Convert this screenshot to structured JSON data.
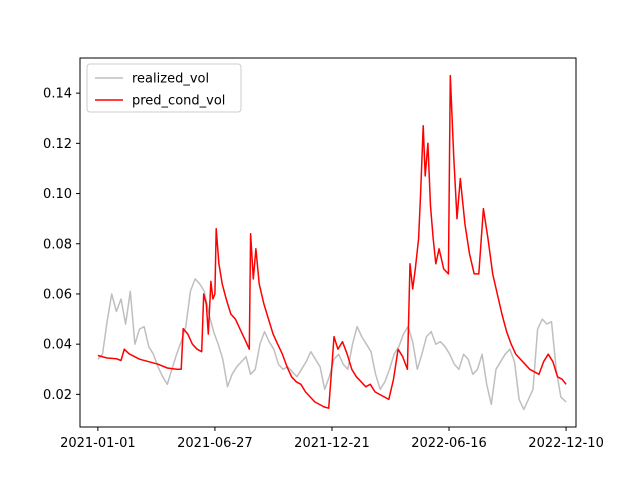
{
  "chart_data": {
    "type": "line",
    "title": "",
    "xlabel": "",
    "ylabel": "",
    "x_ticks": [
      "2021-01-01",
      "2021-06-27",
      "2021-12-21",
      "2022-06-16",
      "2022-12-10"
    ],
    "xlim": [
      "2020-12-05",
      "2022-12-25"
    ],
    "ylim": [
      0.007,
      0.154
    ],
    "y_ticks": [
      0.02,
      0.04,
      0.06,
      0.08,
      0.1,
      0.12,
      0.14
    ],
    "y_tick_labels": [
      "0.02",
      "0.04",
      "0.06",
      "0.08",
      "0.10",
      "0.12",
      "0.14"
    ],
    "grid": false,
    "legend": {
      "position": "top-left"
    },
    "series": [
      {
        "name": "realized_vol",
        "color": "#bfbfbf",
        "points": [
          [
            "2021-01-01",
            0.034
          ],
          [
            "2021-01-08",
            0.036
          ],
          [
            "2021-01-15",
            0.049
          ],
          [
            "2021-01-22",
            0.06
          ],
          [
            "2021-01-29",
            0.053
          ],
          [
            "2021-02-05",
            0.058
          ],
          [
            "2021-02-12",
            0.048
          ],
          [
            "2021-02-19",
            0.061
          ],
          [
            "2021-02-26",
            0.04
          ],
          [
            "2021-03-05",
            0.046
          ],
          [
            "2021-03-12",
            0.047
          ],
          [
            "2021-03-19",
            0.039
          ],
          [
            "2021-03-26",
            0.036
          ],
          [
            "2021-04-02",
            0.031
          ],
          [
            "2021-04-09",
            0.027
          ],
          [
            "2021-04-16",
            0.024
          ],
          [
            "2021-04-23",
            0.03
          ],
          [
            "2021-04-30",
            0.036
          ],
          [
            "2021-05-07",
            0.041
          ],
          [
            "2021-05-14",
            0.047
          ],
          [
            "2021-05-21",
            0.061
          ],
          [
            "2021-05-28",
            0.066
          ],
          [
            "2021-06-04",
            0.064
          ],
          [
            "2021-06-11",
            0.061
          ],
          [
            "2021-06-18",
            0.052
          ],
          [
            "2021-06-25",
            0.045
          ],
          [
            "2021-07-02",
            0.04
          ],
          [
            "2021-07-09",
            0.034
          ],
          [
            "2021-07-16",
            0.023
          ],
          [
            "2021-07-23",
            0.028
          ],
          [
            "2021-07-30",
            0.031
          ],
          [
            "2021-08-06",
            0.033
          ],
          [
            "2021-08-13",
            0.035
          ],
          [
            "2021-08-20",
            0.028
          ],
          [
            "2021-08-27",
            0.03
          ],
          [
            "2021-09-03",
            0.04
          ],
          [
            "2021-09-10",
            0.045
          ],
          [
            "2021-09-17",
            0.041
          ],
          [
            "2021-09-24",
            0.038
          ],
          [
            "2021-10-01",
            0.032
          ],
          [
            "2021-10-08",
            0.03
          ],
          [
            "2021-10-15",
            0.031
          ],
          [
            "2021-10-22",
            0.029
          ],
          [
            "2021-10-29",
            0.027
          ],
          [
            "2021-11-05",
            0.03
          ],
          [
            "2021-11-12",
            0.033
          ],
          [
            "2021-11-19",
            0.037
          ],
          [
            "2021-11-26",
            0.034
          ],
          [
            "2021-12-03",
            0.031
          ],
          [
            "2021-12-10",
            0.022
          ],
          [
            "2021-12-17",
            0.027
          ],
          [
            "2021-12-24",
            0.034
          ],
          [
            "2021-12-31",
            0.036
          ],
          [
            "2022-01-07",
            0.032
          ],
          [
            "2022-01-14",
            0.03
          ],
          [
            "2022-01-21",
            0.04
          ],
          [
            "2022-01-28",
            0.047
          ],
          [
            "2022-02-04",
            0.043
          ],
          [
            "2022-02-11",
            0.04
          ],
          [
            "2022-02-18",
            0.037
          ],
          [
            "2022-02-25",
            0.028
          ],
          [
            "2022-03-04",
            0.022
          ],
          [
            "2022-03-11",
            0.025
          ],
          [
            "2022-03-18",
            0.03
          ],
          [
            "2022-03-25",
            0.036
          ],
          [
            "2022-04-01",
            0.039
          ],
          [
            "2022-04-08",
            0.044
          ],
          [
            "2022-04-15",
            0.047
          ],
          [
            "2022-04-22",
            0.041
          ],
          [
            "2022-04-29",
            0.03
          ],
          [
            "2022-05-06",
            0.036
          ],
          [
            "2022-05-13",
            0.043
          ],
          [
            "2022-05-20",
            0.045
          ],
          [
            "2022-05-27",
            0.04
          ],
          [
            "2022-06-03",
            0.041
          ],
          [
            "2022-06-10",
            0.039
          ],
          [
            "2022-06-17",
            0.036
          ],
          [
            "2022-06-24",
            0.032
          ],
          [
            "2022-07-01",
            0.03
          ],
          [
            "2022-07-08",
            0.036
          ],
          [
            "2022-07-15",
            0.034
          ],
          [
            "2022-07-22",
            0.028
          ],
          [
            "2022-07-29",
            0.03
          ],
          [
            "2022-08-05",
            0.036
          ],
          [
            "2022-08-12",
            0.024
          ],
          [
            "2022-08-19",
            0.016
          ],
          [
            "2022-08-26",
            0.03
          ],
          [
            "2022-09-02",
            0.033
          ],
          [
            "2022-09-09",
            0.036
          ],
          [
            "2022-09-16",
            0.038
          ],
          [
            "2022-09-23",
            0.033
          ],
          [
            "2022-09-30",
            0.018
          ],
          [
            "2022-10-07",
            0.014
          ],
          [
            "2022-10-14",
            0.018
          ],
          [
            "2022-10-21",
            0.022
          ],
          [
            "2022-10-28",
            0.046
          ],
          [
            "2022-11-04",
            0.05
          ],
          [
            "2022-11-11",
            0.048
          ],
          [
            "2022-11-18",
            0.049
          ],
          [
            "2022-11-25",
            0.03
          ],
          [
            "2022-12-02",
            0.019
          ],
          [
            "2022-12-10",
            0.017
          ]
        ]
      },
      {
        "name": "pred_cond_vol",
        "color": "#ff0000",
        "points": [
          [
            "2021-01-01",
            0.0355
          ],
          [
            "2021-01-15",
            0.0345
          ],
          [
            "2021-01-29",
            0.0342
          ],
          [
            "2021-02-05",
            0.0335
          ],
          [
            "2021-02-10",
            0.038
          ],
          [
            "2021-02-17",
            0.0362
          ],
          [
            "2021-03-05",
            0.034
          ],
          [
            "2021-03-19",
            0.033
          ],
          [
            "2021-04-02",
            0.032
          ],
          [
            "2021-04-16",
            0.0305
          ],
          [
            "2021-04-30",
            0.03
          ],
          [
            "2021-05-07",
            0.03
          ],
          [
            "2021-05-10",
            0.0462
          ],
          [
            "2021-05-17",
            0.044
          ],
          [
            "2021-05-24",
            0.04
          ],
          [
            "2021-05-31",
            0.038
          ],
          [
            "2021-06-07",
            0.037
          ],
          [
            "2021-06-10",
            0.06
          ],
          [
            "2021-06-14",
            0.056
          ],
          [
            "2021-06-17",
            0.044
          ],
          [
            "2021-06-21",
            0.065
          ],
          [
            "2021-06-24",
            0.058
          ],
          [
            "2021-06-27",
            0.06
          ],
          [
            "2021-06-29",
            0.086
          ],
          [
            "2021-07-03",
            0.072
          ],
          [
            "2021-07-08",
            0.064
          ],
          [
            "2021-07-14",
            0.058
          ],
          [
            "2021-07-21",
            0.052
          ],
          [
            "2021-07-28",
            0.05
          ],
          [
            "2021-08-04",
            0.046
          ],
          [
            "2021-08-11",
            0.042
          ],
          [
            "2021-08-18",
            0.038
          ],
          [
            "2021-08-20",
            0.084
          ],
          [
            "2021-08-24",
            0.066
          ],
          [
            "2021-08-28",
            0.078
          ],
          [
            "2021-09-02",
            0.064
          ],
          [
            "2021-09-09",
            0.056
          ],
          [
            "2021-09-16",
            0.05
          ],
          [
            "2021-09-23",
            0.044
          ],
          [
            "2021-09-30",
            0.04
          ],
          [
            "2021-10-07",
            0.036
          ],
          [
            "2021-10-14",
            0.031
          ],
          [
            "2021-10-21",
            0.027
          ],
          [
            "2021-10-28",
            0.025
          ],
          [
            "2021-11-04",
            0.024
          ],
          [
            "2021-11-11",
            0.021
          ],
          [
            "2021-11-18",
            0.019
          ],
          [
            "2021-11-25",
            0.017
          ],
          [
            "2021-12-02",
            0.016
          ],
          [
            "2021-12-09",
            0.015
          ],
          [
            "2021-12-16",
            0.0145
          ],
          [
            "2021-12-20",
            0.028
          ],
          [
            "2021-12-24",
            0.043
          ],
          [
            "2021-12-30",
            0.038
          ],
          [
            "2022-01-06",
            0.041
          ],
          [
            "2022-01-13",
            0.036
          ],
          [
            "2022-01-20",
            0.03
          ],
          [
            "2022-01-27",
            0.027
          ],
          [
            "2022-02-03",
            0.025
          ],
          [
            "2022-02-10",
            0.023
          ],
          [
            "2022-02-17",
            0.024
          ],
          [
            "2022-02-24",
            0.021
          ],
          [
            "2022-03-03",
            0.02
          ],
          [
            "2022-03-10",
            0.019
          ],
          [
            "2022-03-17",
            0.018
          ],
          [
            "2022-03-24",
            0.026
          ],
          [
            "2022-03-31",
            0.038
          ],
          [
            "2022-04-07",
            0.035
          ],
          [
            "2022-04-14",
            0.03
          ],
          [
            "2022-04-18",
            0.072
          ],
          [
            "2022-04-22",
            0.062
          ],
          [
            "2022-04-26",
            0.07
          ],
          [
            "2022-05-01",
            0.082
          ],
          [
            "2022-05-04",
            0.1
          ],
          [
            "2022-05-08",
            0.127
          ],
          [
            "2022-05-11",
            0.107
          ],
          [
            "2022-05-15",
            0.12
          ],
          [
            "2022-05-19",
            0.095
          ],
          [
            "2022-05-23",
            0.082
          ],
          [
            "2022-05-27",
            0.072
          ],
          [
            "2022-06-01",
            0.078
          ],
          [
            "2022-06-08",
            0.07
          ],
          [
            "2022-06-15",
            0.068
          ],
          [
            "2022-06-18",
            0.147
          ],
          [
            "2022-06-23",
            0.115
          ],
          [
            "2022-06-28",
            0.09
          ],
          [
            "2022-07-03",
            0.106
          ],
          [
            "2022-07-10",
            0.088
          ],
          [
            "2022-07-17",
            0.076
          ],
          [
            "2022-07-24",
            0.068
          ],
          [
            "2022-07-31",
            0.068
          ],
          [
            "2022-08-07",
            0.094
          ],
          [
            "2022-08-14",
            0.082
          ],
          [
            "2022-08-21",
            0.068
          ],
          [
            "2022-08-28",
            0.06
          ],
          [
            "2022-09-04",
            0.052
          ],
          [
            "2022-09-11",
            0.045
          ],
          [
            "2022-09-18",
            0.04
          ],
          [
            "2022-09-25",
            0.036
          ],
          [
            "2022-10-02",
            0.034
          ],
          [
            "2022-10-09",
            0.032
          ],
          [
            "2022-10-16",
            0.03
          ],
          [
            "2022-10-23",
            0.029
          ],
          [
            "2022-10-30",
            0.028
          ],
          [
            "2022-11-06",
            0.033
          ],
          [
            "2022-11-13",
            0.036
          ],
          [
            "2022-11-20",
            0.033
          ],
          [
            "2022-11-27",
            0.027
          ],
          [
            "2022-12-04",
            0.026
          ],
          [
            "2022-12-10",
            0.024
          ]
        ]
      }
    ]
  }
}
